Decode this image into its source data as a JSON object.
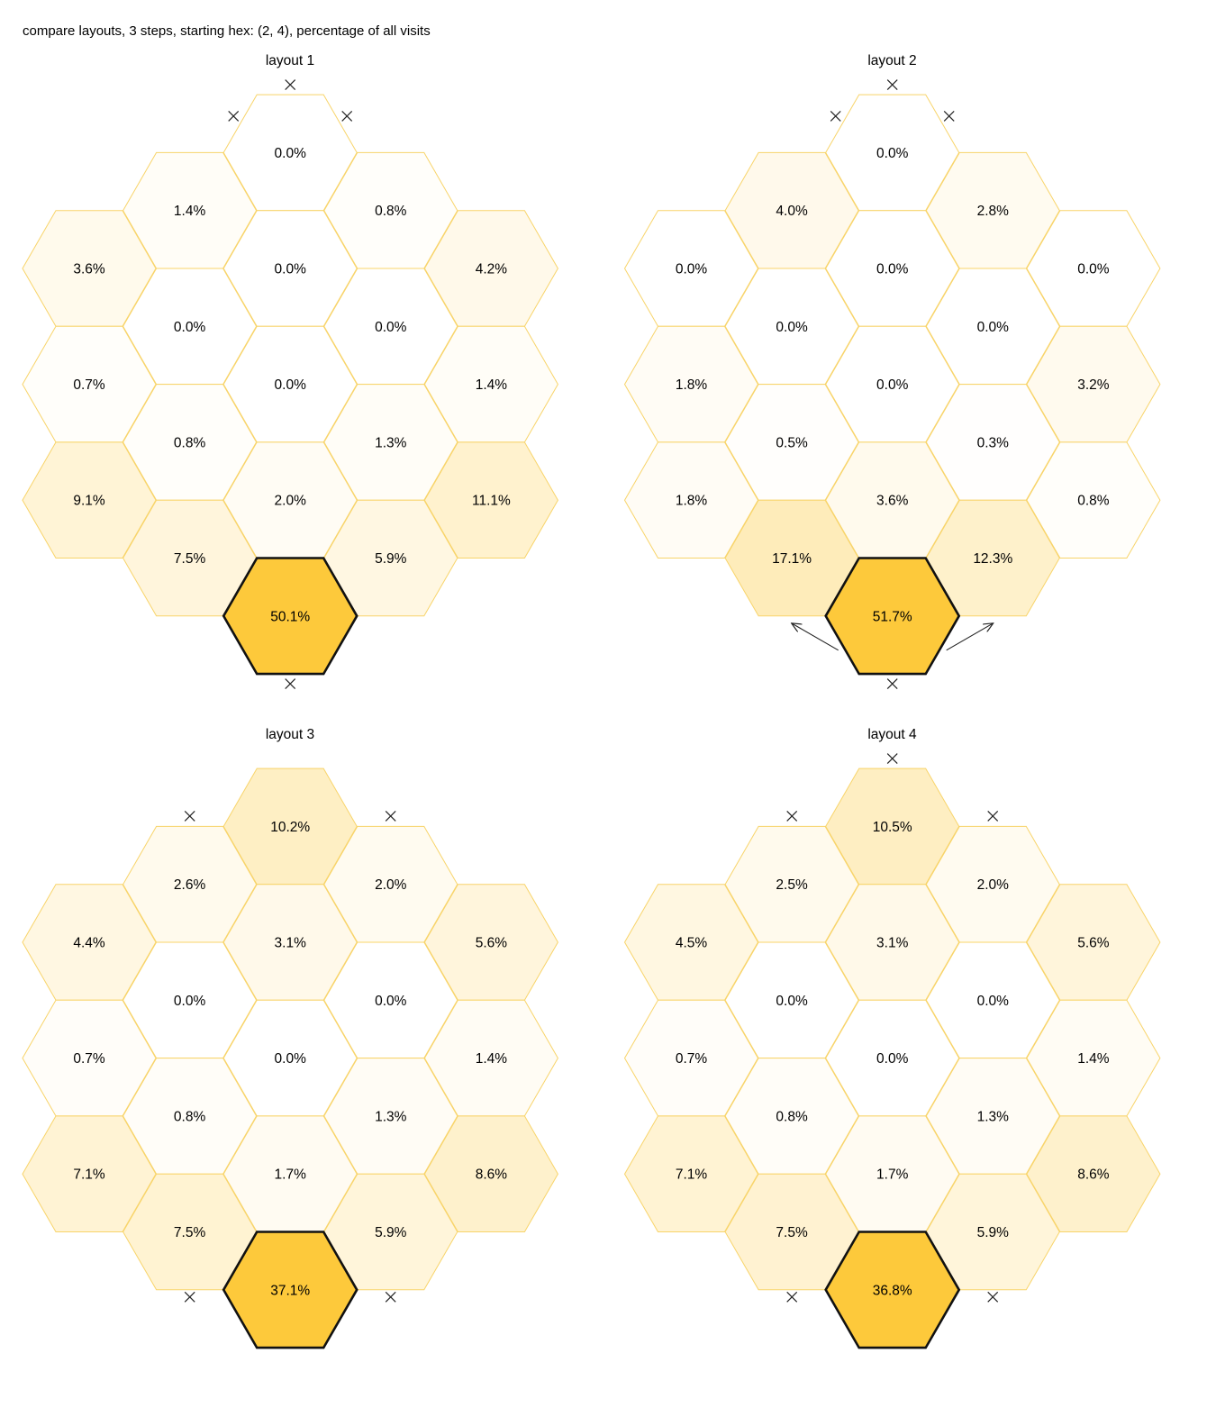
{
  "figure": {
    "title": "compare layouts, 3 steps, starting hex: (2, 4), percentage of all visits"
  },
  "colors": {
    "max_fill": "#fdc93b",
    "min_fill": "#ffffff",
    "cell_border": "#f8d46a",
    "start_border": "#111111",
    "marker": "#222222"
  },
  "layouts": [
    {
      "title": "layout 1",
      "start": {
        "col": 2,
        "row": 4
      },
      "cells": [
        {
          "col": 0,
          "row": 0,
          "value": "3.6%"
        },
        {
          "col": 0,
          "row": 1,
          "value": "0.7%"
        },
        {
          "col": 0,
          "row": 2,
          "value": "9.1%"
        },
        {
          "col": 1,
          "row": 0,
          "value": "1.4%"
        },
        {
          "col": 1,
          "row": 1,
          "value": "0.0%"
        },
        {
          "col": 1,
          "row": 2,
          "value": "0.8%"
        },
        {
          "col": 1,
          "row": 3,
          "value": "7.5%"
        },
        {
          "col": 2,
          "row": 0,
          "value": "0.0%"
        },
        {
          "col": 2,
          "row": 1,
          "value": "0.0%"
        },
        {
          "col": 2,
          "row": 2,
          "value": "0.0%"
        },
        {
          "col": 2,
          "row": 3,
          "value": "2.0%"
        },
        {
          "col": 2,
          "row": 4,
          "value": "50.1%"
        },
        {
          "col": 3,
          "row": 0,
          "value": "0.8%"
        },
        {
          "col": 3,
          "row": 1,
          "value": "0.0%"
        },
        {
          "col": 3,
          "row": 2,
          "value": "1.3%"
        },
        {
          "col": 3,
          "row": 3,
          "value": "5.9%"
        },
        {
          "col": 4,
          "row": 0,
          "value": "4.2%"
        },
        {
          "col": 4,
          "row": 1,
          "value": "1.4%"
        },
        {
          "col": 4,
          "row": 2,
          "value": "11.1%"
        }
      ],
      "blocked_edges": [
        {
          "col": 2,
          "row": 0,
          "side": "top"
        },
        {
          "col": 2,
          "row": 0,
          "side": "top-left"
        },
        {
          "col": 2,
          "row": 0,
          "side": "top-right"
        },
        {
          "col": 2,
          "row": 4,
          "side": "bottom"
        }
      ],
      "arrows": []
    },
    {
      "title": "layout 2",
      "start": {
        "col": 2,
        "row": 4
      },
      "cells": [
        {
          "col": 0,
          "row": 0,
          "value": "0.0%"
        },
        {
          "col": 0,
          "row": 1,
          "value": "1.8%"
        },
        {
          "col": 0,
          "row": 2,
          "value": "1.8%"
        },
        {
          "col": 1,
          "row": 0,
          "value": "4.0%"
        },
        {
          "col": 1,
          "row": 1,
          "value": "0.0%"
        },
        {
          "col": 1,
          "row": 2,
          "value": "0.5%"
        },
        {
          "col": 1,
          "row": 3,
          "value": "17.1%"
        },
        {
          "col": 2,
          "row": 0,
          "value": "0.0%"
        },
        {
          "col": 2,
          "row": 1,
          "value": "0.0%"
        },
        {
          "col": 2,
          "row": 2,
          "value": "0.0%"
        },
        {
          "col": 2,
          "row": 3,
          "value": "3.6%"
        },
        {
          "col": 2,
          "row": 4,
          "value": "51.7%"
        },
        {
          "col": 3,
          "row": 0,
          "value": "2.8%"
        },
        {
          "col": 3,
          "row": 1,
          "value": "0.0%"
        },
        {
          "col": 3,
          "row": 2,
          "value": "0.3%"
        },
        {
          "col": 3,
          "row": 3,
          "value": "12.3%"
        },
        {
          "col": 4,
          "row": 0,
          "value": "0.0%"
        },
        {
          "col": 4,
          "row": 1,
          "value": "3.2%"
        },
        {
          "col": 4,
          "row": 2,
          "value": "0.8%"
        }
      ],
      "blocked_edges": [
        {
          "col": 2,
          "row": 0,
          "side": "top"
        },
        {
          "col": 2,
          "row": 0,
          "side": "top-left"
        },
        {
          "col": 2,
          "row": 0,
          "side": "top-right"
        },
        {
          "col": 2,
          "row": 4,
          "side": "bottom"
        }
      ],
      "arrows": [
        {
          "col": 2,
          "row": 4,
          "side": "bottom-left",
          "to": "top-left"
        },
        {
          "col": 2,
          "row": 4,
          "side": "bottom-right",
          "to": "top-right"
        }
      ]
    },
    {
      "title": "layout 3",
      "start": {
        "col": 2,
        "row": 4
      },
      "cells": [
        {
          "col": 0,
          "row": 0,
          "value": "4.4%"
        },
        {
          "col": 0,
          "row": 1,
          "value": "0.7%"
        },
        {
          "col": 0,
          "row": 2,
          "value": "7.1%"
        },
        {
          "col": 1,
          "row": 0,
          "value": "2.6%"
        },
        {
          "col": 1,
          "row": 1,
          "value": "0.0%"
        },
        {
          "col": 1,
          "row": 2,
          "value": "0.8%"
        },
        {
          "col": 1,
          "row": 3,
          "value": "7.5%"
        },
        {
          "col": 2,
          "row": 0,
          "value": "10.2%"
        },
        {
          "col": 2,
          "row": 1,
          "value": "3.1%"
        },
        {
          "col": 2,
          "row": 2,
          "value": "0.0%"
        },
        {
          "col": 2,
          "row": 3,
          "value": "1.7%"
        },
        {
          "col": 2,
          "row": 4,
          "value": "37.1%"
        },
        {
          "col": 3,
          "row": 0,
          "value": "2.0%"
        },
        {
          "col": 3,
          "row": 1,
          "value": "0.0%"
        },
        {
          "col": 3,
          "row": 2,
          "value": "1.3%"
        },
        {
          "col": 3,
          "row": 3,
          "value": "5.9%"
        },
        {
          "col": 4,
          "row": 0,
          "value": "5.6%"
        },
        {
          "col": 4,
          "row": 1,
          "value": "1.4%"
        },
        {
          "col": 4,
          "row": 2,
          "value": "8.6%"
        }
      ],
      "blocked_edges": [
        {
          "col": 2,
          "row": 0,
          "side": "top-left"
        },
        {
          "col": 2,
          "row": 0,
          "side": "top-right"
        },
        {
          "col": 2,
          "row": 4,
          "side": "top-left"
        },
        {
          "col": 2,
          "row": 4,
          "side": "top-right"
        }
      ],
      "arrows": []
    },
    {
      "title": "layout 4",
      "start": {
        "col": 2,
        "row": 4
      },
      "cells": [
        {
          "col": 0,
          "row": 0,
          "value": "4.5%"
        },
        {
          "col": 0,
          "row": 1,
          "value": "0.7%"
        },
        {
          "col": 0,
          "row": 2,
          "value": "7.1%"
        },
        {
          "col": 1,
          "row": 0,
          "value": "2.5%"
        },
        {
          "col": 1,
          "row": 1,
          "value": "0.0%"
        },
        {
          "col": 1,
          "row": 2,
          "value": "0.8%"
        },
        {
          "col": 1,
          "row": 3,
          "value": "7.5%"
        },
        {
          "col": 2,
          "row": 0,
          "value": "10.5%"
        },
        {
          "col": 2,
          "row": 1,
          "value": "3.1%"
        },
        {
          "col": 2,
          "row": 2,
          "value": "0.0%"
        },
        {
          "col": 2,
          "row": 3,
          "value": "1.7%"
        },
        {
          "col": 2,
          "row": 4,
          "value": "36.8%"
        },
        {
          "col": 3,
          "row": 0,
          "value": "2.0%"
        },
        {
          "col": 3,
          "row": 1,
          "value": "0.0%"
        },
        {
          "col": 3,
          "row": 2,
          "value": "1.3%"
        },
        {
          "col": 3,
          "row": 3,
          "value": "5.9%"
        },
        {
          "col": 4,
          "row": 0,
          "value": "5.6%"
        },
        {
          "col": 4,
          "row": 1,
          "value": "1.4%"
        },
        {
          "col": 4,
          "row": 2,
          "value": "8.6%"
        }
      ],
      "blocked_edges": [
        {
          "col": 2,
          "row": 0,
          "side": "top"
        },
        {
          "col": 2,
          "row": 0,
          "side": "top-left"
        },
        {
          "col": 2,
          "row": 0,
          "side": "top-right"
        },
        {
          "col": 2,
          "row": 4,
          "side": "top-left"
        },
        {
          "col": 2,
          "row": 4,
          "side": "top-right"
        }
      ],
      "arrows": []
    }
  ]
}
